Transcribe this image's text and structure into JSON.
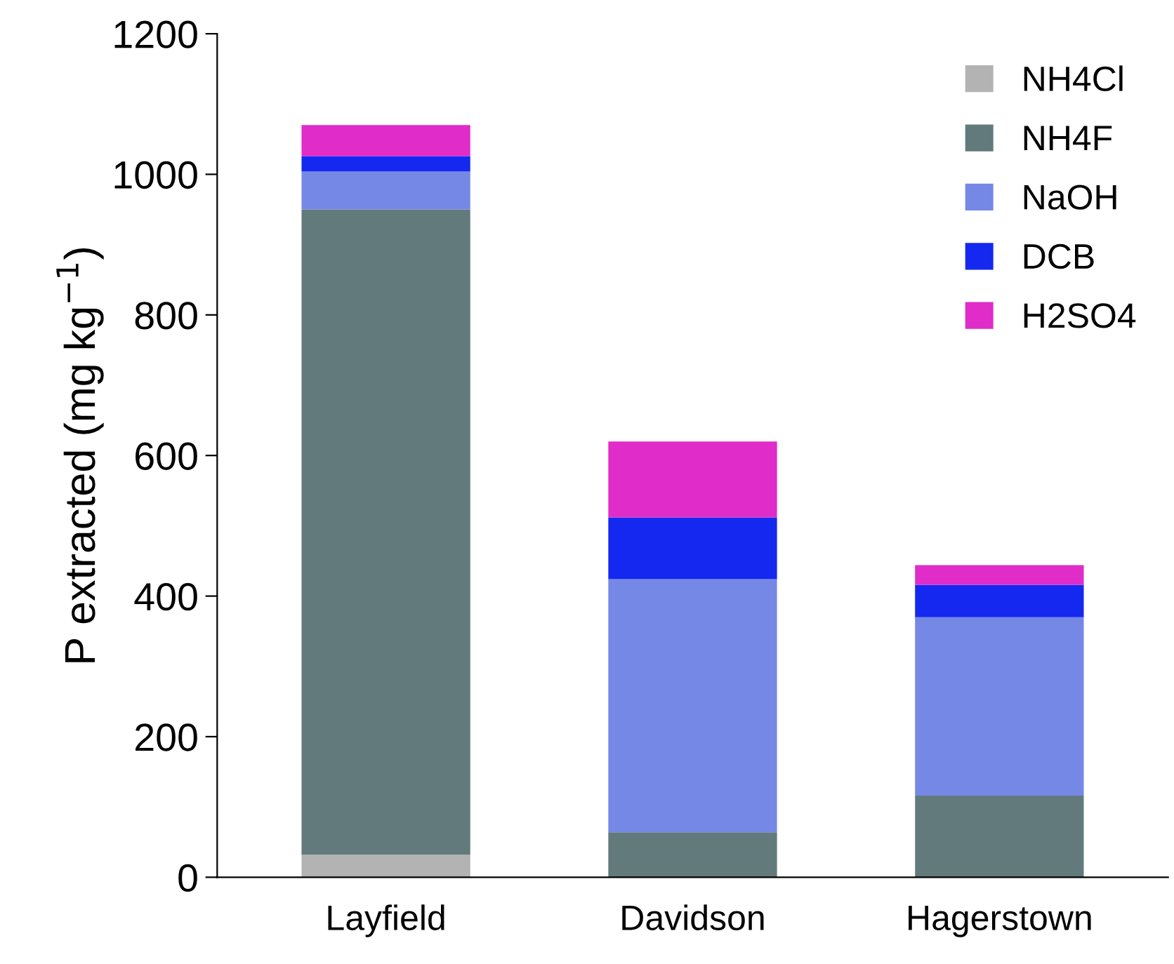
{
  "chart_data": {
    "type": "bar",
    "stacked": true,
    "ylabel": "P extracted (mg kg$^{−1}$)",
    "categories": [
      "Layfield",
      "Davidson",
      "Hagerstown"
    ],
    "series": [
      {
        "name": "NH4Cl",
        "color": "#b3b3b3",
        "values": [
          32,
          0,
          0
        ]
      },
      {
        "name": "NH4F",
        "color": "#637a7c",
        "values": [
          918,
          64,
          116
        ]
      },
      {
        "name": "NaOH",
        "color": "#7588e6",
        "values": [
          54,
          360,
          254
        ]
      },
      {
        "name": "DCB",
        "color": "#1428f0",
        "values": [
          22,
          88,
          46
        ]
      },
      {
        "name": "H2SO4",
        "color": "#e02cc8",
        "values": [
          44,
          108,
          28
        ]
      }
    ],
    "ylim": [
      0,
      1200
    ],
    "yticks": [
      0,
      200,
      400,
      600,
      800,
      1000,
      1200
    ],
    "grid": false,
    "legend": "top right"
  }
}
